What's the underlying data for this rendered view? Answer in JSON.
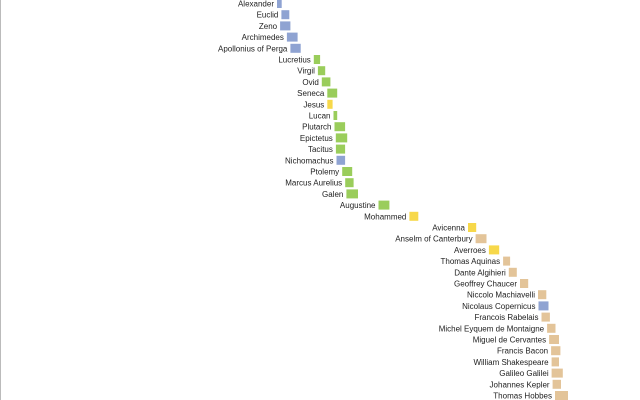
{
  "chart_data": {
    "type": "timeline",
    "title": "",
    "xlabel": "",
    "ylabel": "",
    "colors": {
      "blue": "#8fa3d2",
      "green": "#9acd5b",
      "yellow": "#f7d84a",
      "tan": "#e3c499"
    },
    "items": [
      {
        "label": "Alexander",
        "start": -356,
        "end": -323,
        "color": "blue"
      },
      {
        "label": "Euclid",
        "start": -325,
        "end": -270,
        "color": "blue"
      },
      {
        "label": "Zeno",
        "start": -334,
        "end": -262,
        "color": "blue"
      },
      {
        "label": "Archimedes",
        "start": -287,
        "end": -212,
        "color": "blue"
      },
      {
        "label": "Apollonius of Perga",
        "start": -262,
        "end": -190,
        "color": "blue"
      },
      {
        "label": "Lucretius",
        "start": -99,
        "end": -55,
        "color": "green"
      },
      {
        "label": "Virgil",
        "start": -70,
        "end": -19,
        "color": "green"
      },
      {
        "label": "Ovid",
        "start": -43,
        "end": 17,
        "color": "green"
      },
      {
        "label": "Seneca",
        "start": -4,
        "end": 65,
        "color": "green"
      },
      {
        "label": "Jesus",
        "start": -4,
        "end": 33,
        "color": "yellow"
      },
      {
        "label": "Lucan",
        "start": 39,
        "end": 65,
        "color": "green"
      },
      {
        "label": "Plutarch",
        "start": 46,
        "end": 120,
        "color": "green"
      },
      {
        "label": "Epictetus",
        "start": 55,
        "end": 135,
        "color": "green"
      },
      {
        "label": "Tacitus",
        "start": 56,
        "end": 120,
        "color": "green"
      },
      {
        "label": "Nichomachus",
        "start": 60,
        "end": 120,
        "color": "blue"
      },
      {
        "label": "Ptolemy",
        "start": 100,
        "end": 170,
        "color": "green"
      },
      {
        "label": "Marcus Aurelius",
        "start": 121,
        "end": 180,
        "color": "green"
      },
      {
        "label": "Galen",
        "start": 129,
        "end": 210,
        "color": "green"
      },
      {
        "label": "Augustine",
        "start": 354,
        "end": 430,
        "color": "green"
      },
      {
        "label": "Mohammed",
        "start": 570,
        "end": 632,
        "color": "yellow"
      },
      {
        "label": "Avicenna",
        "start": 980,
        "end": 1037,
        "color": "yellow"
      },
      {
        "label": "Anselm of Canterbury",
        "start": 1033,
        "end": 1109,
        "color": "tan"
      },
      {
        "label": "Averroes",
        "start": 1126,
        "end": 1198,
        "color": "yellow"
      },
      {
        "label": "Thomas Aquinas",
        "start": 1225,
        "end": 1274,
        "color": "tan"
      },
      {
        "label": "Dante Algihieri",
        "start": 1265,
        "end": 1321,
        "color": "tan"
      },
      {
        "label": "Geoffrey Chaucer",
        "start": 1343,
        "end": 1400,
        "color": "tan"
      },
      {
        "label": "Niccolo Machiavelli",
        "start": 1469,
        "end": 1527,
        "color": "tan"
      },
      {
        "label": "Nicolaus Copernicus",
        "start": 1473,
        "end": 1543,
        "color": "blue"
      },
      {
        "label": "Francois Rabelais",
        "start": 1494,
        "end": 1553,
        "color": "tan"
      },
      {
        "label": "Michel Eyquem de Montaigne",
        "start": 1533,
        "end": 1592,
        "color": "tan"
      },
      {
        "label": "Miguel de Cervantes",
        "start": 1547,
        "end": 1616,
        "color": "tan"
      },
      {
        "label": "Francis Bacon",
        "start": 1561,
        "end": 1626,
        "color": "tan"
      },
      {
        "label": "William Shakespeare",
        "start": 1564,
        "end": 1616,
        "color": "tan"
      },
      {
        "label": "Galileo Galilei",
        "start": 1564,
        "end": 1642,
        "color": "tan"
      },
      {
        "label": "Johannes Kepler",
        "start": 1571,
        "end": 1630,
        "color": "tan"
      },
      {
        "label": "Thomas Hobbes",
        "start": 1588,
        "end": 1679,
        "color": "tan"
      }
    ]
  }
}
